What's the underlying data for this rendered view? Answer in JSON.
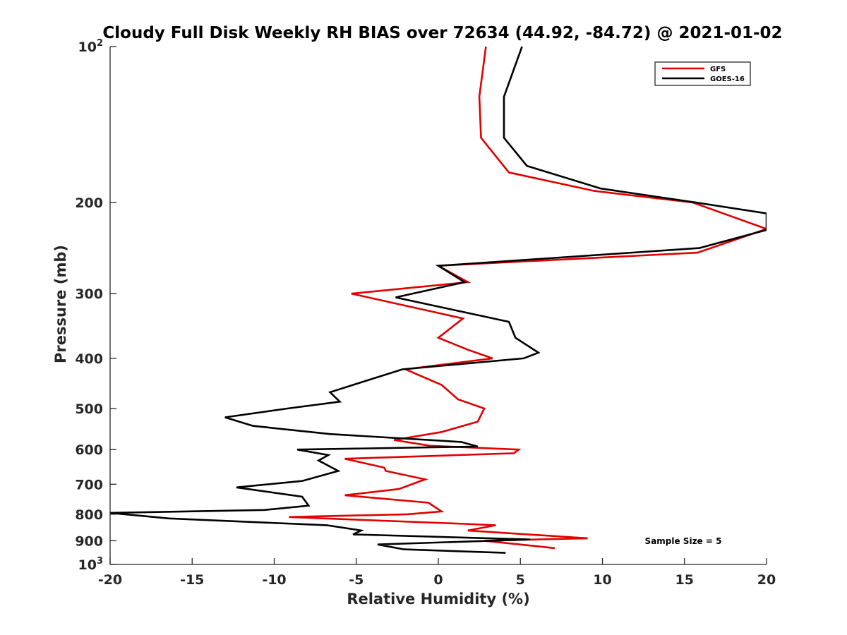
{
  "chart_data": {
    "type": "line",
    "title": "Cloudy Full Disk Weekly RH BIAS over 72634 (44.92, -84.72) @ 2021-01-02",
    "xlabel": "Relative Humidity (%)",
    "ylabel": "Pressure (mb)",
    "xlim": [
      -20,
      20
    ],
    "ylim": [
      1000,
      100
    ],
    "yscale": "log",
    "y_reversed": true,
    "x_ticks": [
      -20,
      -15,
      -10,
      -5,
      0,
      5,
      10,
      15,
      20
    ],
    "x_tick_labels": [
      "-20",
      "-15",
      "-10",
      "-5",
      "0",
      "5",
      "10",
      "15",
      "20"
    ],
    "y_ticks": [
      100,
      200,
      300,
      400,
      500,
      600,
      700,
      800,
      900,
      1000
    ],
    "y_tick_labels": [
      {
        "base": "10",
        "exp": "2"
      },
      {
        "base": "200",
        "exp": ""
      },
      {
        "base": "300",
        "exp": ""
      },
      {
        "base": "400",
        "exp": ""
      },
      {
        "base": "500",
        "exp": ""
      },
      {
        "base": "600",
        "exp": ""
      },
      {
        "base": "700",
        "exp": ""
      },
      {
        "base": "800",
        "exp": ""
      },
      {
        "base": "900",
        "exp": ""
      },
      {
        "base": "10",
        "exp": "3"
      }
    ],
    "grid": false,
    "legend_position": "top-right",
    "annotation": "Sample Size = 5",
    "series": [
      {
        "name": "GFS",
        "color": "#e00000",
        "points": [
          [
            2.9,
            100
          ],
          [
            2.5,
            125
          ],
          [
            2.6,
            150
          ],
          [
            4.3,
            175
          ],
          [
            9.5,
            190
          ],
          [
            15.5,
            200
          ],
          [
            20.0,
            225
          ],
          [
            15.8,
            250
          ],
          [
            0.0,
            265
          ],
          [
            1.8,
            285
          ],
          [
            -5.3,
            300
          ],
          [
            1.5,
            335
          ],
          [
            0.0,
            365
          ],
          [
            1.8,
            385
          ],
          [
            3.3,
            400
          ],
          [
            -2.0,
            420
          ],
          [
            0.2,
            450
          ],
          [
            1.2,
            480
          ],
          [
            2.8,
            500
          ],
          [
            2.4,
            530
          ],
          [
            0.2,
            555
          ],
          [
            -2.7,
            575
          ],
          [
            -0.5,
            590
          ],
          [
            4.9,
            600
          ],
          [
            4.6,
            610
          ],
          [
            -5.7,
            625
          ],
          [
            -3.3,
            650
          ],
          [
            -3.2,
            660
          ],
          [
            -0.8,
            685
          ],
          [
            -2.4,
            715
          ],
          [
            -5.7,
            735
          ],
          [
            -0.6,
            760
          ],
          [
            0.2,
            790
          ],
          [
            -1.9,
            800
          ],
          [
            -9.1,
            810
          ],
          [
            1.6,
            835
          ],
          [
            3.5,
            840
          ],
          [
            1.8,
            860
          ],
          [
            9.1,
            890
          ],
          [
            2.8,
            900
          ],
          [
            7.1,
            930
          ]
        ]
      },
      {
        "name": "GOES-16",
        "color": "#000000",
        "points": [
          [
            5.1,
            100
          ],
          [
            4.0,
            125
          ],
          [
            4.0,
            150
          ],
          [
            5.4,
            170
          ],
          [
            9.9,
            188
          ],
          [
            15.7,
            200
          ],
          [
            20.0,
            210
          ],
          [
            20.0,
            226
          ],
          [
            15.9,
            245
          ],
          [
            0.0,
            265
          ],
          [
            1.6,
            285
          ],
          [
            -2.6,
            305
          ],
          [
            4.3,
            340
          ],
          [
            4.7,
            365
          ],
          [
            6.1,
            390
          ],
          [
            5.2,
            400
          ],
          [
            -2.2,
            420
          ],
          [
            -4.7,
            445
          ],
          [
            -6.6,
            465
          ],
          [
            -6.0,
            485
          ],
          [
            -9.2,
            500
          ],
          [
            -13.0,
            520
          ],
          [
            -11.3,
            540
          ],
          [
            -6.6,
            560
          ],
          [
            1.4,
            580
          ],
          [
            2.4,
            592
          ],
          [
            -8.6,
            600
          ],
          [
            -6.7,
            615
          ],
          [
            -7.3,
            630
          ],
          [
            -6.1,
            660
          ],
          [
            -8.3,
            690
          ],
          [
            -12.3,
            710
          ],
          [
            -8.3,
            740
          ],
          [
            -7.9,
            770
          ],
          [
            -10.6,
            785
          ],
          [
            -20.0,
            795
          ],
          [
            -16.4,
            815
          ],
          [
            -6.8,
            840
          ],
          [
            -4.7,
            860
          ],
          [
            -5.2,
            875
          ],
          [
            5.6,
            895
          ],
          [
            -3.7,
            915
          ],
          [
            -2.1,
            935
          ],
          [
            4.1,
            950
          ]
        ]
      }
    ]
  }
}
